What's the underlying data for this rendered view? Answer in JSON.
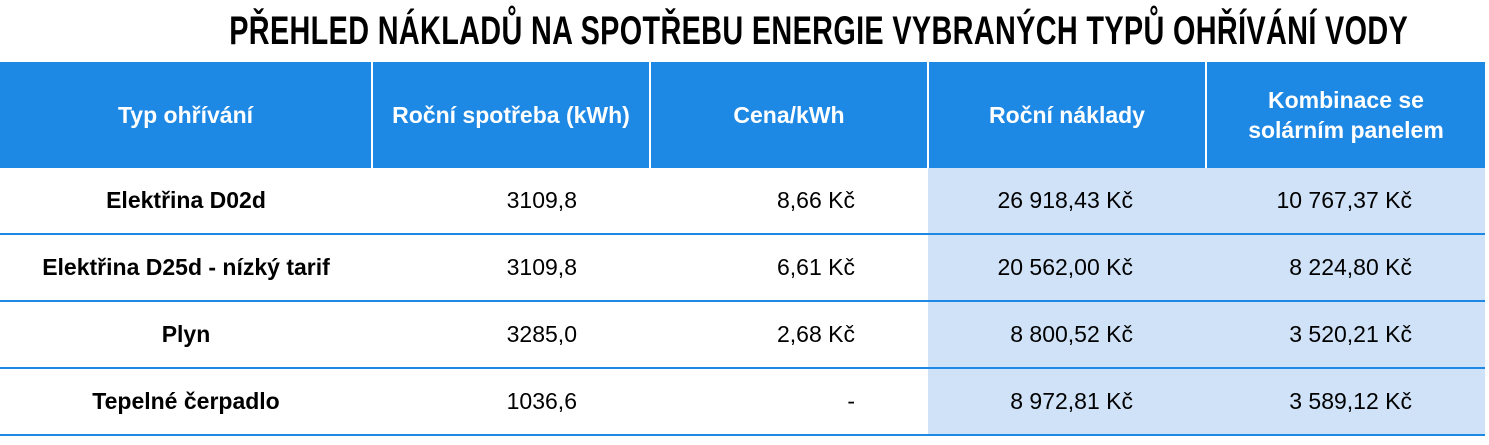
{
  "header": {
    "title": "PŘEHLED NÁKLADŮ NA SPOTŘEBU ENERGIE VYBRANÝCH TYPŮ OHŘÍVÁNÍ VODY"
  },
  "table": {
    "columns": [
      "Typ ohřívání",
      "Roční spotřeba (kWh)",
      "Cena/kWh",
      "Roční náklady",
      "Kombinace se solárním panelem"
    ],
    "rows": [
      [
        "Elektřina D02d",
        "3109,8",
        "8,66 Kč",
        "26 918,43 Kč",
        "10 767,37 Kč"
      ],
      [
        "Elektřina D25d - nízký tarif",
        "3109,8",
        "6,61 Kč",
        "20 562,00 Kč",
        "8 224,80 Kč"
      ],
      [
        "Plyn",
        "3285,0",
        "2,68 Kč",
        "8 800,52 Kč",
        "3 520,21 Kč"
      ],
      [
        "Tepelné čerpadlo",
        "1036,6",
        "-",
        "8 972,81 Kč",
        "3 589,12 Kč"
      ]
    ]
  }
}
